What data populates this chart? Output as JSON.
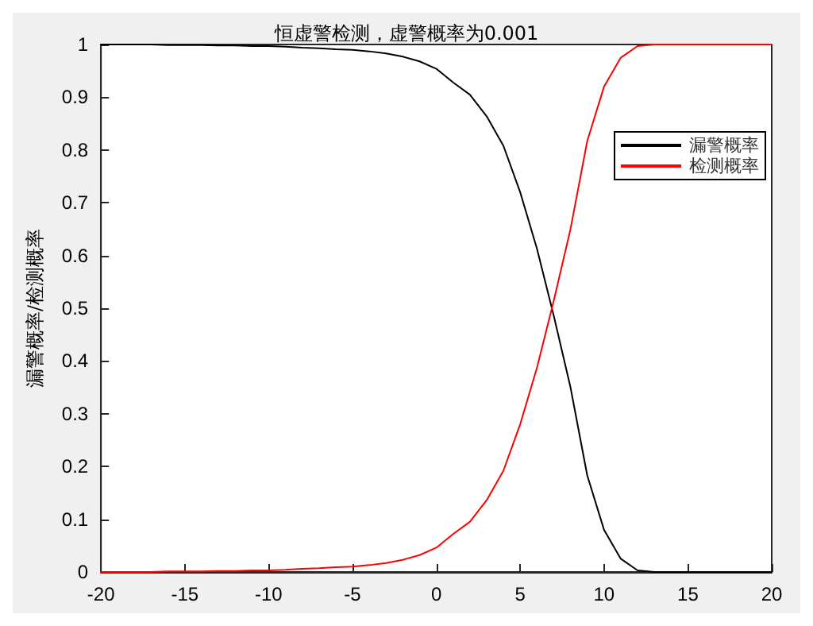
{
  "chart_data": {
    "type": "line",
    "title": "恒虚警检测，虚警概率为0.001",
    "ylabel": "漏警概率/检测概率",
    "x": [
      -20,
      -19,
      -18,
      -17,
      -16,
      -15,
      -14,
      -13,
      -12,
      -11,
      -10,
      -9,
      -8,
      -7,
      -6,
      -5,
      -4,
      -3,
      -2,
      -1,
      0,
      1,
      2,
      3,
      4,
      5,
      6,
      7,
      8,
      9,
      10,
      11,
      12,
      13,
      14,
      15,
      16,
      17,
      18,
      19,
      20
    ],
    "series": [
      {
        "name": "漏警概率",
        "color": "#000000",
        "values": [
          1,
          1,
          1,
          1,
          0.999,
          0.999,
          0.999,
          0.998,
          0.998,
          0.997,
          0.997,
          0.996,
          0.994,
          0.993,
          0.991,
          0.99,
          0.987,
          0.983,
          0.977,
          0.968,
          0.954,
          0.928,
          0.905,
          0.864,
          0.808,
          0.72,
          0.613,
          0.486,
          0.35,
          0.183,
          0.08,
          0.025,
          0.003,
          0,
          0,
          0,
          0,
          0,
          0,
          0,
          0
        ]
      },
      {
        "name": "检测概率",
        "color": "#ff0000",
        "values": [
          0,
          0,
          0,
          0,
          0.001,
          0.001,
          0.001,
          0.002,
          0.002,
          0.003,
          0.003,
          0.004,
          0.006,
          0.007,
          0.009,
          0.01,
          0.013,
          0.017,
          0.023,
          0.032,
          0.046,
          0.072,
          0.095,
          0.136,
          0.192,
          0.28,
          0.387,
          0.514,
          0.65,
          0.817,
          0.92,
          0.975,
          0.997,
          1,
          1,
          1,
          1,
          1,
          1,
          1,
          1
        ]
      }
    ],
    "xlim": [
      -20,
      20
    ],
    "xticks": [
      -20,
      -15,
      -10,
      -5,
      0,
      5,
      10,
      15,
      20
    ],
    "ylim": [
      0,
      1
    ],
    "yticks": [
      0,
      0.1,
      0.2,
      0.3,
      0.4,
      0.5,
      0.6,
      0.7,
      0.8,
      0.9,
      1
    ],
    "grid": false,
    "legend": "top right",
    "marker": "none",
    "line_style": "solid"
  }
}
